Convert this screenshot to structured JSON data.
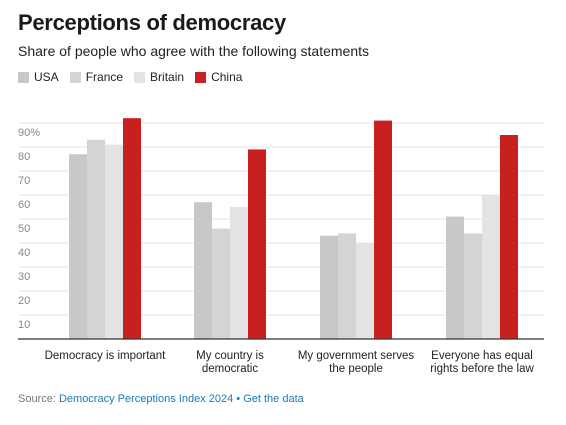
{
  "title": "Perceptions of democracy",
  "subtitle": "Share of people who agree with the following statements",
  "source": {
    "label": "Source: ",
    "link_text": "Democracy Perceptions Index 2024",
    "separator": " • ",
    "data_link": "Get the data"
  },
  "colors": {
    "USA": "#c8c8c8",
    "France": "#d4d4d4",
    "Britain": "#e3e3e3",
    "China": "#c8201f"
  },
  "chart_data": {
    "type": "bar",
    "categories": [
      [
        "Democracy is important"
      ],
      [
        "My country is",
        "democratic"
      ],
      [
        "My government serves",
        "the people"
      ],
      [
        "Everyone has equal",
        "rights before the law"
      ]
    ],
    "series": [
      {
        "name": "USA",
        "values": [
          77,
          57,
          43,
          51
        ]
      },
      {
        "name": "France",
        "values": [
          83,
          46,
          44,
          44
        ]
      },
      {
        "name": "Britain",
        "values": [
          81,
          55,
          40,
          60
        ]
      },
      {
        "name": "China",
        "values": [
          92,
          79,
          91,
          85
        ]
      }
    ],
    "ylim": [
      0,
      90
    ],
    "yticks": [
      10,
      20,
      30,
      40,
      50,
      60,
      70,
      80,
      90
    ],
    "ytick_labels": [
      "10",
      "20",
      "30",
      "40",
      "50",
      "60",
      "70",
      "80",
      "90%"
    ],
    "legend": "top-left",
    "grid": true
  }
}
